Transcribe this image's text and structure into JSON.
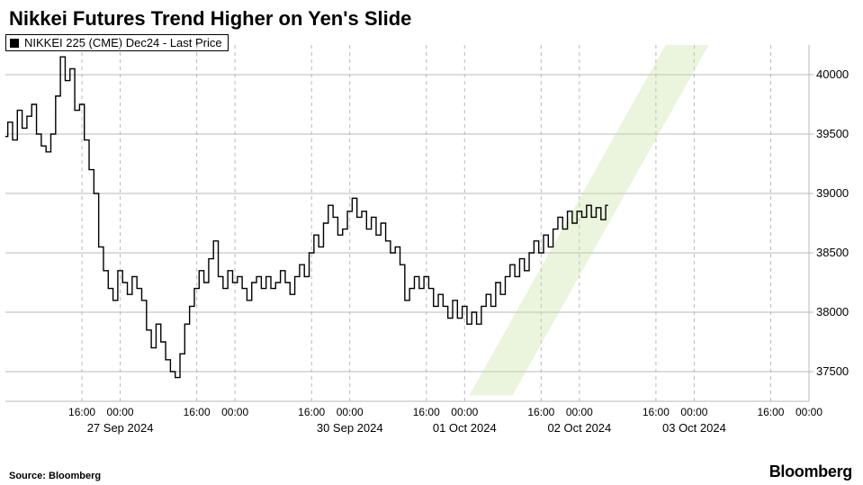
{
  "title": "Nikkei Futures Trend Higher on Yen's Slide",
  "title_fontsize": 22,
  "legend": {
    "swatch_color": "#000000",
    "label": "NIKKEI 225 (CME) Dec24 - Last Price"
  },
  "source_label": "Source: Bloomberg",
  "brand": "Bloomberg",
  "chart": {
    "type": "line",
    "background_color": "#ffffff",
    "grid_color": "#b9b9b9",
    "yaxis": {
      "lim": [
        37250,
        40250
      ],
      "ticks": [
        37500,
        38000,
        38500,
        39000,
        39500,
        40000
      ],
      "tick_fontsize": 13,
      "side": "right"
    },
    "xaxis": {
      "lim": [
        0,
        168
      ],
      "day_boundaries": [
        0,
        24,
        48,
        72,
        96,
        120,
        144,
        168
      ],
      "minor_dashed_hours": [
        16,
        24,
        40,
        48,
        64,
        72,
        88,
        96,
        112,
        120,
        136,
        144,
        160,
        168
      ],
      "time_tick_hours": [
        16,
        24,
        40,
        48,
        64,
        72,
        88,
        96,
        112,
        120,
        136,
        144,
        160,
        168
      ],
      "time_tick_labels": [
        "16:00",
        "00:00",
        "16:00",
        "00:00",
        "16:00",
        "00:00",
        "16:00",
        "00:00",
        "16:00",
        "00:00",
        "16:00",
        "00:00",
        "16:00",
        "00:00"
      ],
      "date_tick_hours": [
        24,
        48,
        72,
        96,
        120,
        144
      ],
      "date_tick_labels": [
        "27 Sep 2024",
        "",
        "30 Sep 2024",
        "01 Oct 2024",
        "02 Oct 2024",
        "03 Oct 2024"
      ]
    },
    "channel": {
      "color": "#c6e09b",
      "poly": [
        [
          97,
          37300
        ],
        [
          138,
          40250
        ],
        [
          147,
          40250
        ],
        [
          106,
          37300
        ]
      ]
    },
    "series": [
      {
        "t": 0,
        "v": 39480
      },
      {
        "t": 1,
        "v": 39600
      },
      {
        "t": 2,
        "v": 39450
      },
      {
        "t": 3,
        "v": 39700
      },
      {
        "t": 4,
        "v": 39550
      },
      {
        "t": 5,
        "v": 39650
      },
      {
        "t": 6,
        "v": 39750
      },
      {
        "t": 7,
        "v": 39500
      },
      {
        "t": 8,
        "v": 39400
      },
      {
        "t": 9,
        "v": 39350
      },
      {
        "t": 10,
        "v": 39500
      },
      {
        "t": 11,
        "v": 39820
      },
      {
        "t": 12,
        "v": 40150
      },
      {
        "t": 13,
        "v": 39950
      },
      {
        "t": 14,
        "v": 40050
      },
      {
        "t": 15,
        "v": 39700
      },
      {
        "t": 16,
        "v": 39750
      },
      {
        "t": 17,
        "v": 39450
      },
      {
        "t": 18,
        "v": 39200
      },
      {
        "t": 19,
        "v": 39000
      },
      {
        "t": 20,
        "v": 38550
      },
      {
        "t": 21,
        "v": 38350
      },
      {
        "t": 22,
        "v": 38200
      },
      {
        "t": 23,
        "v": 38100
      },
      {
        "t": 24,
        "v": 38350
      },
      {
        "t": 25,
        "v": 38250
      },
      {
        "t": 26,
        "v": 38150
      },
      {
        "t": 27,
        "v": 38300
      },
      {
        "t": 28,
        "v": 38200
      },
      {
        "t": 29,
        "v": 38100
      },
      {
        "t": 30,
        "v": 37850
      },
      {
        "t": 31,
        "v": 37700
      },
      {
        "t": 32,
        "v": 37900
      },
      {
        "t": 33,
        "v": 37750
      },
      {
        "t": 34,
        "v": 37600
      },
      {
        "t": 35,
        "v": 37500
      },
      {
        "t": 36,
        "v": 37450
      },
      {
        "t": 37,
        "v": 37650
      },
      {
        "t": 38,
        "v": 37900
      },
      {
        "t": 39,
        "v": 38050
      },
      {
        "t": 40,
        "v": 38200
      },
      {
        "t": 41,
        "v": 38350
      },
      {
        "t": 42,
        "v": 38250
      },
      {
        "t": 43,
        "v": 38450
      },
      {
        "t": 44,
        "v": 38600
      },
      {
        "t": 45,
        "v": 38300
      },
      {
        "t": 46,
        "v": 38200
      },
      {
        "t": 47,
        "v": 38350
      },
      {
        "t": 48,
        "v": 38250
      },
      {
        "t": 49,
        "v": 38300
      },
      {
        "t": 50,
        "v": 38200
      },
      {
        "t": 51,
        "v": 38100
      },
      {
        "t": 52,
        "v": 38250
      },
      {
        "t": 53,
        "v": 38300
      },
      {
        "t": 54,
        "v": 38200
      },
      {
        "t": 55,
        "v": 38300
      },
      {
        "t": 56,
        "v": 38200
      },
      {
        "t": 57,
        "v": 38250
      },
      {
        "t": 58,
        "v": 38350
      },
      {
        "t": 59,
        "v": 38250
      },
      {
        "t": 60,
        "v": 38150
      },
      {
        "t": 61,
        "v": 38300
      },
      {
        "t": 62,
        "v": 38400
      },
      {
        "t": 63,
        "v": 38300
      },
      {
        "t": 64,
        "v": 38500
      },
      {
        "t": 65,
        "v": 38650
      },
      {
        "t": 66,
        "v": 38550
      },
      {
        "t": 67,
        "v": 38750
      },
      {
        "t": 68,
        "v": 38900
      },
      {
        "t": 69,
        "v": 38800
      },
      {
        "t": 70,
        "v": 38650
      },
      {
        "t": 71,
        "v": 38700
      },
      {
        "t": 72,
        "v": 38850
      },
      {
        "t": 73,
        "v": 38960
      },
      {
        "t": 74,
        "v": 38800
      },
      {
        "t": 75,
        "v": 38850
      },
      {
        "t": 76,
        "v": 38700
      },
      {
        "t": 77,
        "v": 38800
      },
      {
        "t": 78,
        "v": 38650
      },
      {
        "t": 79,
        "v": 38750
      },
      {
        "t": 80,
        "v": 38600
      },
      {
        "t": 81,
        "v": 38500
      },
      {
        "t": 82,
        "v": 38550
      },
      {
        "t": 83,
        "v": 38400
      },
      {
        "t": 84,
        "v": 38100
      },
      {
        "t": 85,
        "v": 38200
      },
      {
        "t": 86,
        "v": 38300
      },
      {
        "t": 87,
        "v": 38200
      },
      {
        "t": 88,
        "v": 38300
      },
      {
        "t": 89,
        "v": 38200
      },
      {
        "t": 90,
        "v": 38050
      },
      {
        "t": 91,
        "v": 38150
      },
      {
        "t": 92,
        "v": 38050
      },
      {
        "t": 93,
        "v": 37950
      },
      {
        "t": 94,
        "v": 38100
      },
      {
        "t": 95,
        "v": 37950
      },
      {
        "t": 96,
        "v": 38050
      },
      {
        "t": 97,
        "v": 37900
      },
      {
        "t": 98,
        "v": 38000
      },
      {
        "t": 99,
        "v": 37900
      },
      {
        "t": 100,
        "v": 38050
      },
      {
        "t": 101,
        "v": 38150
      },
      {
        "t": 102,
        "v": 38050
      },
      {
        "t": 103,
        "v": 38250
      },
      {
        "t": 104,
        "v": 38150
      },
      {
        "t": 105,
        "v": 38300
      },
      {
        "t": 106,
        "v": 38400
      },
      {
        "t": 107,
        "v": 38300
      },
      {
        "t": 108,
        "v": 38450
      },
      {
        "t": 109,
        "v": 38350
      },
      {
        "t": 110,
        "v": 38500
      },
      {
        "t": 111,
        "v": 38600
      },
      {
        "t": 112,
        "v": 38500
      },
      {
        "t": 113,
        "v": 38650
      },
      {
        "t": 114,
        "v": 38550
      },
      {
        "t": 115,
        "v": 38700
      },
      {
        "t": 116,
        "v": 38800
      },
      {
        "t": 117,
        "v": 38700
      },
      {
        "t": 118,
        "v": 38850
      },
      {
        "t": 119,
        "v": 38750
      },
      {
        "t": 120,
        "v": 38850
      },
      {
        "t": 121,
        "v": 38800
      },
      {
        "t": 122,
        "v": 38900
      },
      {
        "t": 123,
        "v": 38800
      },
      {
        "t": 124,
        "v": 38880
      },
      {
        "t": 125,
        "v": 38780
      },
      {
        "t": 126,
        "v": 38900
      }
    ]
  }
}
